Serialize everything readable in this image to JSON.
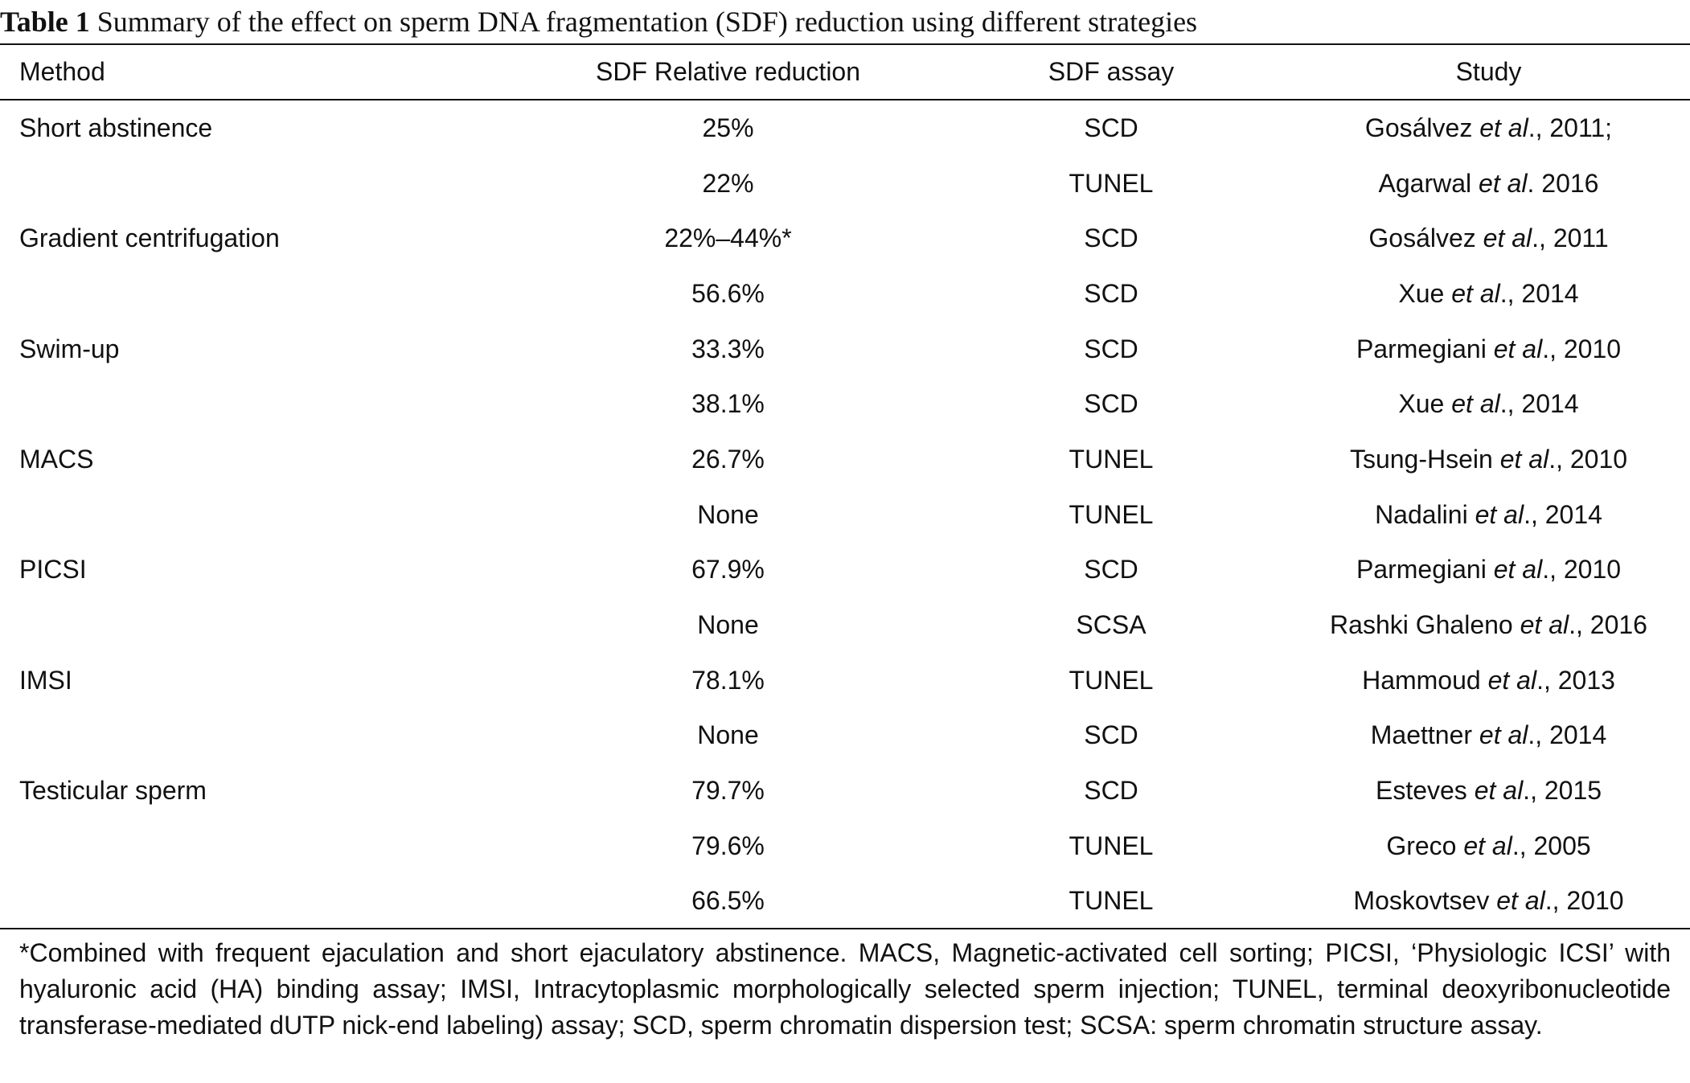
{
  "caption": {
    "label": "Table 1",
    "text": "Summary of the effect on sperm DNA fragmentation (SDF) reduction using different strategies"
  },
  "table": {
    "columns": [
      "Method",
      "SDF Relative reduction",
      "SDF assay",
      "Study"
    ],
    "rows": [
      {
        "method": "Short abstinence",
        "reduction": "25%",
        "assay": "SCD",
        "author": "Gosálvez",
        "etal": "et al",
        "tail": "., 2011;"
      },
      {
        "method": "",
        "reduction": "22%",
        "assay": "TUNEL",
        "author": "Agarwal",
        "etal": "et al",
        "tail": ". 2016"
      },
      {
        "method": "Gradient centrifugation",
        "reduction": "22%–44%*",
        "assay": "SCD",
        "author": "Gosálvez",
        "etal": "et al",
        "tail": "., 2011"
      },
      {
        "method": "",
        "reduction": "56.6%",
        "assay": "SCD",
        "author": "Xue",
        "etal": "et al",
        "tail": "., 2014"
      },
      {
        "method": "Swim-up",
        "reduction": "33.3%",
        "assay": "SCD",
        "author": "Parmegiani",
        "etal": "et al",
        "tail": "., 2010"
      },
      {
        "method": "",
        "reduction": "38.1%",
        "assay": "SCD",
        "author": "Xue",
        "etal": "et al",
        "tail": "., 2014"
      },
      {
        "method": "MACS",
        "reduction": "26.7%",
        "assay": "TUNEL",
        "author": "Tsung-Hsein",
        "etal": "et al",
        "tail": "., 2010"
      },
      {
        "method": "",
        "reduction": "None",
        "assay": "TUNEL",
        "author": "Nadalini",
        "etal": "et al",
        "tail": "., 2014"
      },
      {
        "method": "PICSI",
        "reduction": "67.9%",
        "assay": "SCD",
        "author": "Parmegiani",
        "etal": "et al",
        "tail": "., 2010"
      },
      {
        "method": "",
        "reduction": "None",
        "assay": "SCSA",
        "author": "Rashki Ghaleno",
        "etal": "et al",
        "tail": "., 2016"
      },
      {
        "method": "IMSI",
        "reduction": "78.1%",
        "assay": "TUNEL",
        "author": "Hammoud",
        "etal": "et al",
        "tail": "., 2013"
      },
      {
        "method": "",
        "reduction": "None",
        "assay": "SCD",
        "author": "Maettner",
        "etal": "et al",
        "tail": "., 2014"
      },
      {
        "method": "Testicular sperm",
        "reduction": "79.7%",
        "assay": "SCD",
        "author": "Esteves",
        "etal": "et al",
        "tail": "., 2015"
      },
      {
        "method": "",
        "reduction": "79.6%",
        "assay": "TUNEL",
        "author": "Greco",
        "etal": "et al",
        "tail": "., 2005"
      },
      {
        "method": "",
        "reduction": "66.5%",
        "assay": "TUNEL",
        "author": "Moskovtsev",
        "etal": "et al",
        "tail": "., 2010"
      }
    ]
  },
  "footnote": "*Combined with frequent ejaculation and short ejaculatory abstinence. MACS, Magnetic-activated cell sorting; PICSI, ‘Physiologic ICSI’ with hyaluronic acid (HA) binding assay; IMSI, Intracytoplasmic morphologically selected sperm injection; TUNEL, terminal deoxyribonucleotide transferase-mediated dUTP nick-end labeling) assay; SCD, sperm chromatin dispersion test; SCSA: sperm chromatin structure assay."
}
